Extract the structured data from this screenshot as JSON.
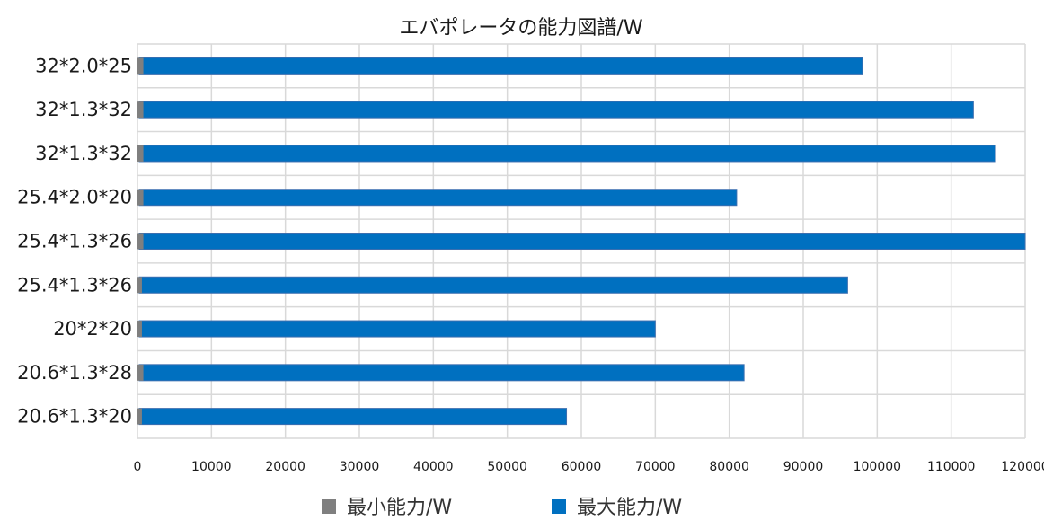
{
  "chart_data": {
    "type": "bar",
    "orientation": "horizontal",
    "title": "エバポレータの能力図譜/W",
    "categories": [
      "32*2.0*25",
      "32*1.3*32",
      "32*1.3*32",
      "25.4*2.0*20",
      "25.4*1.3*26",
      "25.4*1.3*26",
      "20*2*20",
      "20.6*1.3*28",
      "20.6*1.3*20"
    ],
    "series": [
      {
        "name": "最小能力/W",
        "color": "#7f7f7f",
        "values": [
          800,
          800,
          800,
          800,
          800,
          600,
          600,
          800,
          600
        ]
      },
      {
        "name": "最大能力/W",
        "color": "#0070c0",
        "values": [
          98000,
          113000,
          116000,
          81000,
          120000,
          96000,
          70000,
          82000,
          58000
        ]
      }
    ],
    "xlim": [
      0,
      120000
    ],
    "xticks": [
      0,
      10000,
      20000,
      30000,
      40000,
      50000,
      60000,
      70000,
      80000,
      90000,
      100000,
      110000,
      120000
    ],
    "xtick_labels": [
      "0",
      "10000",
      "20000",
      "30000",
      "40000",
      "50000",
      "60000",
      "70000",
      "80000",
      "90000",
      "100000",
      "110000",
      "120000"
    ],
    "grid": true,
    "legend": "bottom"
  }
}
